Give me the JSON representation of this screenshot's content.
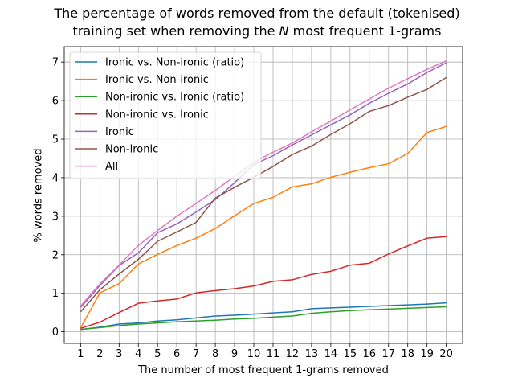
{
  "chart_data": {
    "type": "line",
    "title_line1": "The percentage of words removed from the default (tokenised)",
    "title_line2_prefix": "training set when removing the ",
    "title_line2_var": "N",
    "title_line2_suffix": " most frequent 1-grams",
    "xlabel": "The number of most frequent 1-grams removed",
    "ylabel": "% words removed",
    "x": [
      1,
      2,
      3,
      4,
      5,
      6,
      7,
      8,
      9,
      10,
      11,
      12,
      13,
      14,
      15,
      16,
      17,
      18,
      19,
      20
    ],
    "xlim": [
      0.15,
      20.85
    ],
    "ylim": [
      -0.3,
      7.4
    ],
    "yticks": [
      0,
      1,
      2,
      3,
      4,
      5,
      6,
      7
    ],
    "grid": true,
    "legend_position": "top-left",
    "series": [
      {
        "name": "Ironic vs. Non-ironic (ratio)",
        "color": "#1f77b4",
        "values": [
          0.06,
          0.12,
          0.2,
          0.23,
          0.28,
          0.31,
          0.36,
          0.41,
          0.43,
          0.46,
          0.49,
          0.52,
          0.6,
          0.62,
          0.64,
          0.66,
          0.68,
          0.7,
          0.72,
          0.75
        ]
      },
      {
        "name": "Ironic vs. Non-ironic",
        "color": "#ff7f0e",
        "values": [
          0.1,
          1.01,
          1.25,
          1.76,
          2.01,
          2.24,
          2.43,
          2.68,
          3.01,
          3.33,
          3.49,
          3.76,
          3.84,
          4.01,
          4.14,
          4.26,
          4.36,
          4.63,
          5.17,
          5.33
        ]
      },
      {
        "name": "Non-ironic vs. Ironic (ratio)",
        "color": "#2ca02c",
        "values": [
          0.06,
          0.11,
          0.16,
          0.2,
          0.23,
          0.26,
          0.28,
          0.3,
          0.33,
          0.35,
          0.38,
          0.41,
          0.48,
          0.52,
          0.55,
          0.57,
          0.59,
          0.61,
          0.63,
          0.65
        ]
      },
      {
        "name": "Non-ironic vs. Ironic",
        "color": "#d62728",
        "values": [
          0.09,
          0.25,
          0.5,
          0.74,
          0.8,
          0.85,
          1.01,
          1.07,
          1.12,
          1.19,
          1.31,
          1.35,
          1.49,
          1.57,
          1.73,
          1.78,
          2.02,
          2.23,
          2.43,
          2.47
        ]
      },
      {
        "name": "Ironic",
        "color": "#9467bd",
        "values": [
          0.63,
          1.2,
          1.72,
          2.05,
          2.57,
          2.8,
          3.11,
          3.43,
          3.87,
          4.34,
          4.57,
          4.85,
          5.11,
          5.37,
          5.63,
          5.93,
          6.19,
          6.43,
          6.73,
          6.98
        ]
      },
      {
        "name": "Non-ironic",
        "color": "#8c564b",
        "values": [
          0.52,
          1.09,
          1.5,
          1.88,
          2.35,
          2.59,
          2.84,
          3.47,
          3.75,
          4.01,
          4.29,
          4.6,
          4.82,
          5.12,
          5.4,
          5.72,
          5.87,
          6.09,
          6.29,
          6.6
        ]
      },
      {
        "name": "All",
        "color": "#e377c2",
        "values": [
          0.67,
          1.24,
          1.73,
          2.24,
          2.63,
          3.0,
          3.33,
          3.67,
          4.03,
          4.4,
          4.66,
          4.9,
          5.19,
          5.47,
          5.76,
          6.04,
          6.32,
          6.57,
          6.81,
          7.03
        ]
      }
    ]
  }
}
